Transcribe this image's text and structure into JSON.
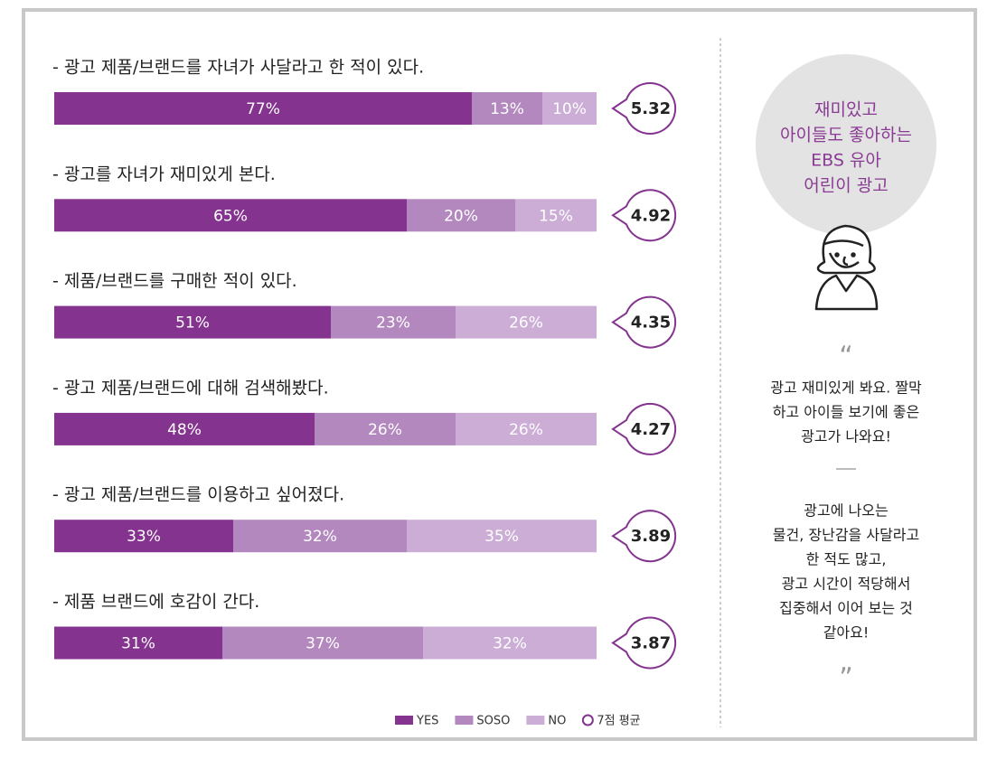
{
  "chart_data": {
    "type": "bar",
    "orientation": "horizontal",
    "stacked": true,
    "categories": [
      "- 광고 제품/브랜드를 자녀가 사달라고 한 적이 있다.",
      "- 광고를 자녀가 재미있게 본다.",
      "- 제품/브랜드를 구매한 적이 있다.",
      "- 광고 제품/브랜드에 대해 검색해봤다.",
      "- 광고 제품/브랜드를 이용하고 싶어졌다.",
      "- 제품 브랜드에 호감이 간다."
    ],
    "series": [
      {
        "name": "YES",
        "color": "#84338f",
        "values": [
          77,
          65,
          51,
          48,
          33,
          31
        ],
        "value_labels": [
          "77%",
          "65%",
          "51%",
          "48%",
          "33%",
          "31%"
        ]
      },
      {
        "name": "SOSO",
        "color": "#b388bf",
        "values": [
          13,
          20,
          23,
          26,
          32,
          37
        ],
        "value_labels": [
          "13%",
          "20%",
          "23%",
          "26%",
          "32%",
          "37%"
        ]
      },
      {
        "name": "NO",
        "color": "#cbadd6",
        "values": [
          10,
          15,
          26,
          26,
          35,
          32
        ],
        "value_labels": [
          "10%",
          "15%",
          "26%",
          "26%",
          "35%",
          "32%"
        ]
      }
    ],
    "averages": {
      "name": "7점 평균",
      "color": "#84338f",
      "values": [
        5.32,
        4.92,
        4.35,
        4.27,
        3.89,
        3.87
      ]
    },
    "xlim": [
      0,
      100
    ]
  },
  "sidebar": {
    "bubble": [
      "재미있고",
      "아이들도 좋아하는",
      "EBS 유아",
      "어린이 광고"
    ],
    "quote_open": "“",
    "quote_1": [
      "광고 재미있게 봐요. 짤막",
      "하고 아이들 보기에 좋은",
      "광고가 나와요!"
    ],
    "quote_2": [
      "광고에 나오는",
      "물건, 장난감을 사달라고",
      "한 적도 많고,",
      "광고 시간이 적당해서",
      "집중해서 이어 보는 것",
      "같아요!"
    ],
    "quote_close": "”"
  }
}
